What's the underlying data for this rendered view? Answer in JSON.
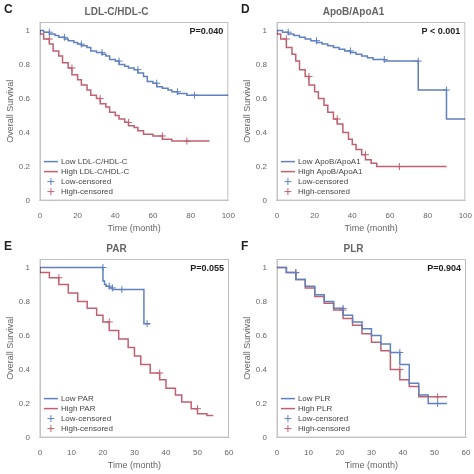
{
  "chart_data": [
    {
      "type": "line",
      "title": "LDL-C/HDL-C",
      "annotations": [
        "C",
        "P=0.040"
      ],
      "xlabel": "Time (month)",
      "ylabel": "Overall Survival",
      "xlim": [
        0,
        100
      ],
      "ylim": [
        0.0,
        1.05
      ],
      "xticks": [
        0,
        20.0,
        40.0,
        60.0,
        80.0,
        100.0
      ],
      "yticks": [
        0.0,
        0.2,
        0.4,
        0.6,
        0.8,
        1.0
      ],
      "grid": false,
      "legend": "lower left",
      "series": [
        {
          "name": "Low LDL-C/HDL-C",
          "type": "line",
          "line_style": "steps",
          "color": "#6080C0",
          "x": [
            0,
            2,
            5,
            8,
            10,
            13,
            15,
            18,
            20,
            22,
            25,
            27,
            30,
            33,
            35,
            37,
            40,
            42,
            45,
            47,
            50,
            52,
            55,
            57,
            60,
            62,
            65,
            68,
            70,
            73,
            75,
            78,
            80,
            82,
            85,
            90,
            95,
            100
          ],
          "values": [
            1.0,
            1.0,
            0.99,
            0.98,
            0.97,
            0.96,
            0.95,
            0.94,
            0.93,
            0.92,
            0.91,
            0.9,
            0.88,
            0.87,
            0.86,
            0.85,
            0.83,
            0.82,
            0.8,
            0.79,
            0.78,
            0.77,
            0.75,
            0.73,
            0.7,
            0.69,
            0.67,
            0.66,
            0.65,
            0.64,
            0.63,
            0.63,
            0.62,
            0.62,
            0.62,
            0.62,
            0.62,
            0.62
          ]
        },
        {
          "name": "High LDL-C/HDL-C",
          "type": "line",
          "line_style": "steps",
          "color": "#C06070",
          "x": [
            0,
            2,
            5,
            7,
            10,
            12,
            15,
            17,
            20,
            22,
            25,
            27,
            30,
            32,
            35,
            37,
            40,
            42,
            45,
            47,
            50,
            52,
            55,
            60,
            65,
            70,
            75,
            78,
            80,
            85,
            90
          ],
          "values": [
            1.0,
            0.98,
            0.95,
            0.92,
            0.88,
            0.85,
            0.81,
            0.78,
            0.74,
            0.71,
            0.68,
            0.65,
            0.62,
            0.6,
            0.57,
            0.55,
            0.52,
            0.5,
            0.48,
            0.46,
            0.44,
            0.43,
            0.41,
            0.39,
            0.38,
            0.36,
            0.35,
            0.35,
            0.35,
            0.35,
            0.35
          ]
        },
        {
          "name": "Low-censored",
          "type": "scatter",
          "marker": "plus",
          "color": "#6080C0",
          "x": [
            5,
            13,
            22,
            33,
            42,
            52,
            62,
            73,
            82
          ],
          "values": [
            0.99,
            0.96,
            0.92,
            0.87,
            0.82,
            0.77,
            0.69,
            0.64,
            0.62
          ]
        },
        {
          "name": "High-censored",
          "type": "scatter",
          "marker": "plus",
          "color": "#C06070",
          "x": [
            5,
            17,
            32,
            47,
            65,
            78
          ],
          "values": [
            0.95,
            0.78,
            0.6,
            0.46,
            0.38,
            0.35
          ]
        }
      ]
    },
    {
      "type": "line",
      "title": "ApoB/ApoA1",
      "annotations": [
        "D",
        "P < 0.001"
      ],
      "xlabel": "Time (month)",
      "ylabel": "Overall Survival",
      "xlim": [
        0,
        100
      ],
      "ylim": [
        0.0,
        1.05
      ],
      "xticks": [
        0,
        20.0,
        40.0,
        60.0,
        80.0,
        100.0
      ],
      "yticks": [
        0.0,
        0.2,
        0.4,
        0.6,
        0.8,
        1.0
      ],
      "grid": false,
      "legend": "lower left",
      "series": [
        {
          "name": "Low ApoB/ApoA1",
          "type": "line",
          "line_style": "steps",
          "color": "#6080C0",
          "x": [
            0,
            3,
            6,
            9,
            12,
            15,
            18,
            21,
            24,
            27,
            30,
            33,
            36,
            39,
            42,
            45,
            48,
            51,
            54,
            57,
            60,
            65,
            70,
            75,
            78,
            80,
            85,
            90,
            95,
            100
          ],
          "values": [
            1.0,
            1.0,
            0.99,
            0.98,
            0.97,
            0.96,
            0.95,
            0.94,
            0.93,
            0.92,
            0.91,
            0.9,
            0.89,
            0.88,
            0.87,
            0.86,
            0.85,
            0.84,
            0.83,
            0.83,
            0.82,
            0.82,
            0.82,
            0.82,
            0.65,
            0.65,
            0.65,
            0.65,
            0.48,
            0.48
          ]
        },
        {
          "name": "High ApoB/ApoA1",
          "type": "line",
          "line_style": "steps",
          "color": "#C06070",
          "x": [
            0,
            2,
            5,
            8,
            10,
            12,
            15,
            17,
            20,
            22,
            25,
            27,
            30,
            32,
            35,
            38,
            40,
            42,
            45,
            47,
            50,
            53,
            55,
            58,
            60,
            65,
            70,
            75,
            80,
            85,
            90
          ],
          "values": [
            1.0,
            0.98,
            0.95,
            0.9,
            0.86,
            0.82,
            0.77,
            0.73,
            0.68,
            0.64,
            0.6,
            0.56,
            0.52,
            0.48,
            0.45,
            0.4,
            0.36,
            0.33,
            0.3,
            0.27,
            0.24,
            0.22,
            0.2,
            0.2,
            0.2,
            0.2,
            0.2,
            0.2,
            0.2,
            0.2,
            0.2
          ]
        },
        {
          "name": "Low-censored",
          "type": "scatter",
          "marker": "plus",
          "color": "#6080C0",
          "x": [
            6,
            21,
            39,
            57,
            75,
            90
          ],
          "values": [
            0.99,
            0.94,
            0.88,
            0.83,
            0.82,
            0.65
          ]
        },
        {
          "name": "High-censored",
          "type": "scatter",
          "marker": "plus",
          "color": "#C06070",
          "x": [
            5,
            17,
            32,
            47,
            65
          ],
          "values": [
            0.95,
            0.73,
            0.48,
            0.27,
            0.2
          ]
        }
      ]
    },
    {
      "type": "line",
      "title": "PAR",
      "annotations": [
        "E",
        "P=0.055"
      ],
      "xlabel": "Time (month)",
      "ylabel": "Overall Survival",
      "xlim": [
        0,
        60
      ],
      "ylim": [
        0.0,
        1.05
      ],
      "xticks": [
        0,
        10.0,
        20.0,
        30.0,
        40.0,
        50.0,
        60.0
      ],
      "yticks": [
        0.0,
        0.2,
        0.4,
        0.6,
        0.8,
        1.0
      ],
      "grid": false,
      "legend": "lower left",
      "series": [
        {
          "name": "Low PAR",
          "type": "line",
          "line_style": "steps",
          "color": "#6080C0",
          "x": [
            0,
            20,
            20.5,
            21,
            22,
            23,
            24,
            25,
            26,
            33,
            34,
            35
          ],
          "values": [
            1.0,
            1.0,
            0.92,
            0.9,
            0.89,
            0.88,
            0.87,
            0.87,
            0.87,
            0.87,
            0.67,
            0.67
          ]
        },
        {
          "name": "High PAR",
          "type": "line",
          "line_style": "steps",
          "color": "#C06070",
          "x": [
            0,
            3,
            6,
            9,
            12,
            15,
            18,
            20,
            22,
            25,
            28,
            30,
            32,
            35,
            38,
            40,
            43,
            45,
            48,
            50,
            53,
            55
          ],
          "values": [
            1.0,
            0.97,
            0.94,
            0.9,
            0.85,
            0.8,
            0.76,
            0.72,
            0.68,
            0.63,
            0.58,
            0.53,
            0.48,
            0.43,
            0.38,
            0.34,
            0.29,
            0.25,
            0.21,
            0.17,
            0.14,
            0.13
          ]
        },
        {
          "name": "Low-censored",
          "type": "scatter",
          "marker": "plus",
          "color": "#6080C0",
          "x": [
            20,
            22,
            23,
            26,
            34
          ],
          "values": [
            1.0,
            0.89,
            0.88,
            0.87,
            0.67
          ]
        },
        {
          "name": "High-censored",
          "type": "scatter",
          "marker": "plus",
          "color": "#C06070",
          "x": [
            6,
            22,
            38,
            50
          ],
          "values": [
            0.94,
            0.68,
            0.38,
            0.17
          ]
        }
      ]
    },
    {
      "type": "line",
      "title": "PLR",
      "annotations": [
        "F",
        "P=0.904"
      ],
      "xlabel": "Time (month)",
      "ylabel": "Overall Survival",
      "xlim": [
        0,
        60
      ],
      "ylim": [
        0.0,
        1.05
      ],
      "xticks": [
        0,
        10.0,
        20.0,
        30.0,
        40.0,
        50.0,
        60.0
      ],
      "yticks": [
        0.0,
        0.2,
        0.4,
        0.6,
        0.8,
        1.0
      ],
      "grid": false,
      "legend": "lower left",
      "series": [
        {
          "name": "Low PLR",
          "type": "line",
          "line_style": "steps",
          "color": "#6080C0",
          "x": [
            0,
            3,
            6,
            9,
            12,
            15,
            18,
            21,
            24,
            27,
            30,
            33,
            36,
            39,
            42,
            45,
            48,
            51,
            54
          ],
          "values": [
            1.0,
            1.0,
            0.97,
            0.93,
            0.89,
            0.84,
            0.8,
            0.76,
            0.72,
            0.68,
            0.64,
            0.6,
            0.55,
            0.5,
            0.43,
            0.32,
            0.25,
            0.2,
            0.2
          ]
        },
        {
          "name": "High PLR",
          "type": "line",
          "line_style": "steps",
          "color": "#C06070",
          "x": [
            0,
            3,
            6,
            9,
            12,
            15,
            18,
            21,
            24,
            27,
            30,
            33,
            36,
            39,
            42,
            45,
            48,
            51,
            54
          ],
          "values": [
            1.0,
            1.0,
            0.97,
            0.93,
            0.88,
            0.83,
            0.79,
            0.75,
            0.7,
            0.66,
            0.61,
            0.56,
            0.51,
            0.4,
            0.34,
            0.3,
            0.24,
            0.24,
            0.24
          ]
        },
        {
          "name": "Low-censored",
          "type": "scatter",
          "marker": "plus",
          "color": "#6080C0",
          "x": [
            6,
            21,
            39,
            51
          ],
          "values": [
            0.97,
            0.76,
            0.5,
            0.2
          ]
        },
        {
          "name": "High-censored",
          "type": "scatter",
          "marker": "plus",
          "color": "#C06070",
          "x": [
            6,
            21,
            39,
            51
          ],
          "values": [
            0.97,
            0.75,
            0.4,
            0.24
          ]
        }
      ]
    }
  ]
}
